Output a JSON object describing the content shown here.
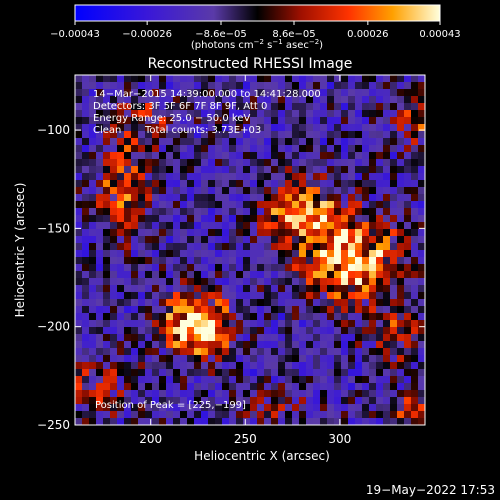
{
  "chart_data": {
    "type": "heatmap",
    "title": "Reconstructed RHESSI Image",
    "xlabel": "Heliocentric X (arcsec)",
    "ylabel": "Heliocentric Y (arcsec)",
    "xlim": [
      160,
      345
    ],
    "ylim": [
      -250,
      -72
    ],
    "x_ticks": [
      {
        "value": 200,
        "label": "200"
      },
      {
        "value": 250,
        "label": "250"
      },
      {
        "value": 300,
        "label": "300"
      }
    ],
    "y_ticks": [
      {
        "value": -100,
        "label": "−100"
      },
      {
        "value": -150,
        "label": "−150"
      },
      {
        "value": -200,
        "label": "−200"
      },
      {
        "value": -250,
        "label": "−250"
      }
    ],
    "colorbar": {
      "min": -0.00043,
      "max": 0.00043,
      "unit_main": "(photons cm",
      "unit_exp1": "−2",
      "unit_mid": " s",
      "unit_exp2": "−1",
      "unit_end": " asec",
      "unit_exp3": "−2",
      "unit_close": ")",
      "ticks": [
        {
          "value": -0.00043,
          "label": "−0.00043"
        },
        {
          "value": -0.00026,
          "label": "−0.00026"
        },
        {
          "value": -8.6e-05,
          "label": "−8.6e−05"
        },
        {
          "value": 8.6e-05,
          "label": "8.6e−05"
        },
        {
          "value": 0.00026,
          "label": "0.00026"
        },
        {
          "value": 0.00043,
          "label": "0.00043"
        }
      ]
    },
    "annotations": {
      "time": "14−Mar−2015 14:39:00.000 to 14:41:28.000",
      "detectors": "Detectors: 3F 5F 6F 7F 8F 9F, Att 0",
      "energy": "Energy Range: 25.0 − 50.0 keV",
      "clean": "Clean",
      "counts": "Total counts: 3.73E+03",
      "peak": "Position of Peak = [225,−199]"
    },
    "sources": [
      {
        "x": 225,
        "y": -199,
        "amp": 1.0,
        "sx": 13,
        "sy": 11
      },
      {
        "x": 305,
        "y": -165,
        "amp": 0.95,
        "sx": 17,
        "sy": 15
      },
      {
        "x": 278,
        "y": -140,
        "amp": 0.7,
        "sx": 13,
        "sy": 12
      },
      {
        "x": 185,
        "y": -130,
        "amp": 0.55,
        "sx": 10,
        "sy": 17
      },
      {
        "x": 200,
        "y": -95,
        "amp": 0.35,
        "sx": 12,
        "sy": 9
      },
      {
        "x": 330,
        "y": -205,
        "amp": 0.4,
        "sx": 9,
        "sy": 10
      },
      {
        "x": 340,
        "y": -95,
        "amp": 0.4,
        "sx": 8,
        "sy": 10
      },
      {
        "x": 170,
        "y": -230,
        "amp": 0.35,
        "sx": 12,
        "sy": 10
      },
      {
        "x": 340,
        "y": -245,
        "amp": 0.45,
        "sx": 8,
        "sy": 8
      },
      {
        "x": 265,
        "y": -240,
        "amp": 0.3,
        "sx": 10,
        "sy": 6
      }
    ]
  },
  "footer": {
    "date": "19−May−2022 17:53"
  }
}
